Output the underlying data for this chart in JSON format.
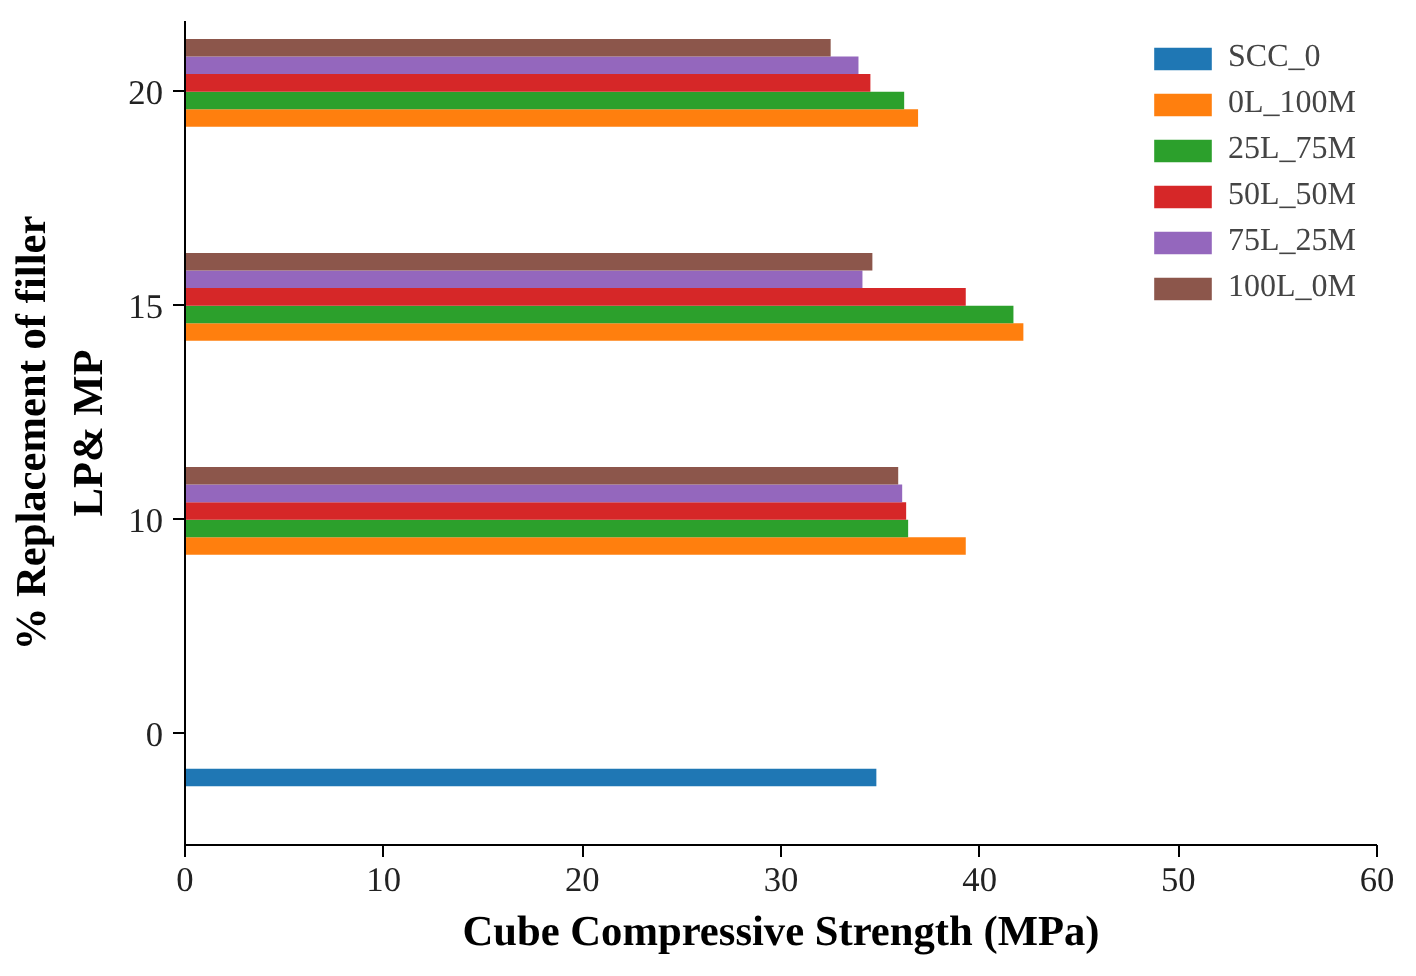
{
  "chart_data": {
    "type": "bar",
    "orientation": "horizontal",
    "xlabel": "Cube Compressive Strength (MPa)",
    "ylabel": "% Replacement of filler\nLP& MP",
    "categories": [
      "20",
      "15",
      "10",
      "0"
    ],
    "series": [
      {
        "name": "SCC_0",
        "color": "#1f77b4",
        "values": [
          null,
          null,
          null,
          34.8
        ]
      },
      {
        "name": "0L_100M",
        "color": "#ff7f0e",
        "values": [
          36.9,
          42.2,
          39.3,
          null
        ]
      },
      {
        "name": "25L_75M",
        "color": "#2ca02c",
        "values": [
          36.2,
          41.7,
          36.4,
          null
        ]
      },
      {
        "name": "50L_50M",
        "color": "#d62728",
        "values": [
          34.5,
          39.3,
          36.3,
          null
        ]
      },
      {
        "name": "75L_25M",
        "color": "#9467bd",
        "values": [
          33.9,
          34.1,
          36.1,
          null
        ]
      },
      {
        "name": "100L_0M",
        "color": "#8c564b",
        "values": [
          32.5,
          34.6,
          35.9,
          null
        ]
      }
    ],
    "xlim": [
      0,
      60
    ],
    "xticks": [
      0,
      10,
      20,
      30,
      40,
      50,
      60
    ],
    "grid": false,
    "legend": "top right"
  }
}
